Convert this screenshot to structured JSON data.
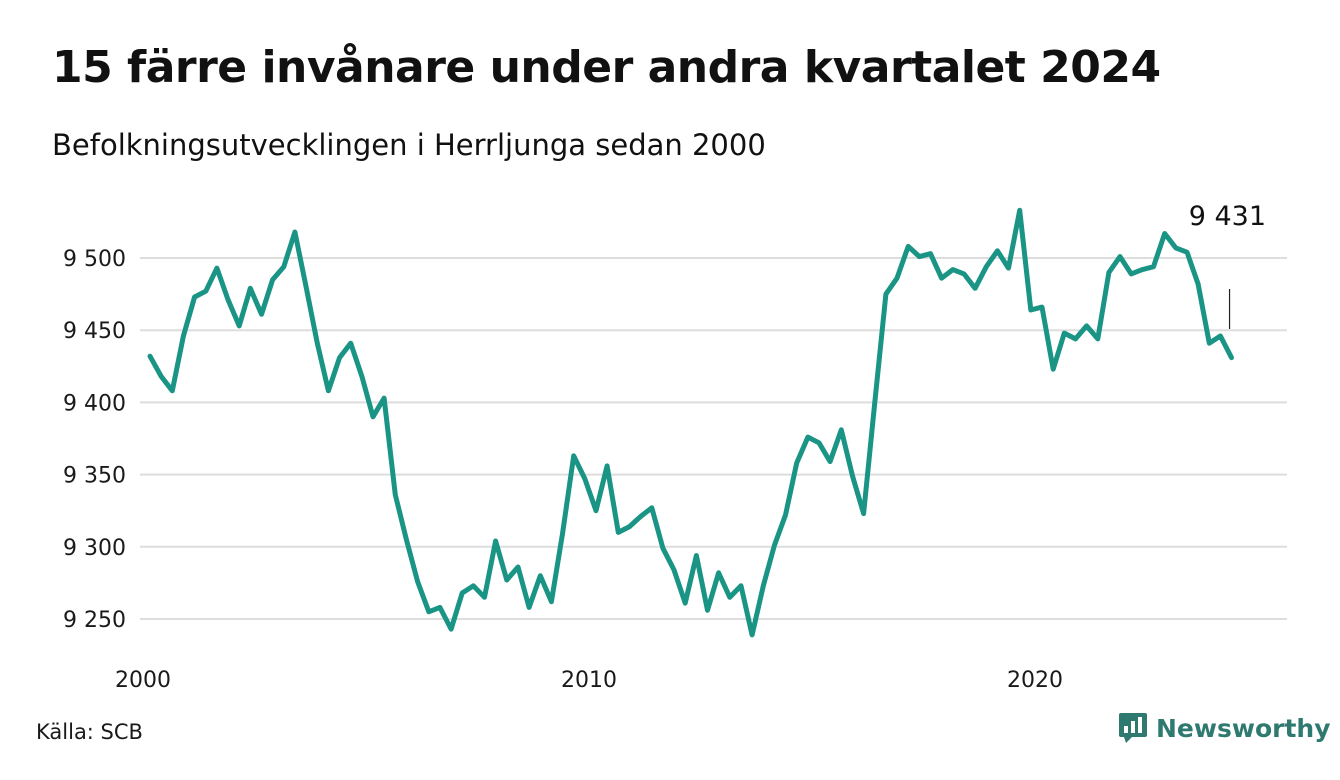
{
  "header": {
    "title": "15 färre invånare under andra kvartalet 2024",
    "subtitle": "Befolkningsutvecklingen i Herrljunga sedan 2000"
  },
  "footer": {
    "source": "Källa: SCB",
    "brand": "Newsworthy"
  },
  "colors": {
    "line": "#1a9484",
    "grid": "#dddddd",
    "brand": "#2e7a70"
  },
  "icons": [
    "newsworthy-logo-icon"
  ],
  "chart_data": {
    "type": "line",
    "title": "15 färre invånare under andra kvartalet 2024",
    "subtitle": "Befolkningsutvecklingen i Herrljunga sedan 2000",
    "xlabel": "",
    "ylabel": "",
    "x_unit": "quarter",
    "ylim": [
      9235,
      9540
    ],
    "xlim": [
      2000,
      2024.5
    ],
    "y_ticks": [
      {
        "value": 9250,
        "label": "9 250"
      },
      {
        "value": 9300,
        "label": "9 300"
      },
      {
        "value": 9350,
        "label": "9 350"
      },
      {
        "value": 9400,
        "label": "9 400"
      },
      {
        "value": 9450,
        "label": "9 450"
      },
      {
        "value": 9500,
        "label": "9 500"
      }
    ],
    "x_ticks": [
      {
        "value": 2000,
        "label": "2000"
      },
      {
        "value": 2010,
        "label": "2010"
      },
      {
        "value": 2020,
        "label": "2020"
      }
    ],
    "grid": "horizontal",
    "annotation": {
      "text": "9 431",
      "x": "2024 Q2",
      "value": 9431
    },
    "x": [
      "2000 Q1",
      "2000 Q2",
      "2000 Q3",
      "2000 Q4",
      "2001 Q1",
      "2001 Q2",
      "2001 Q3",
      "2001 Q4",
      "2002 Q1",
      "2002 Q2",
      "2002 Q3",
      "2002 Q4",
      "2003 Q1",
      "2003 Q2",
      "2003 Q3",
      "2003 Q4",
      "2004 Q1",
      "2004 Q2",
      "2004 Q3",
      "2004 Q4",
      "2005 Q1",
      "2005 Q2",
      "2005 Q3",
      "2005 Q4",
      "2006 Q1",
      "2006 Q2",
      "2006 Q3",
      "2006 Q4",
      "2007 Q1",
      "2007 Q2",
      "2007 Q3",
      "2007 Q4",
      "2008 Q1",
      "2008 Q2",
      "2008 Q3",
      "2008 Q4",
      "2009 Q1",
      "2009 Q2",
      "2009 Q3",
      "2009 Q4",
      "2010 Q1",
      "2010 Q2",
      "2010 Q3",
      "2010 Q4",
      "2011 Q1",
      "2011 Q2",
      "2011 Q3",
      "2011 Q4",
      "2012 Q1",
      "2012 Q2",
      "2012 Q3",
      "2012 Q4",
      "2013 Q1",
      "2013 Q2",
      "2013 Q3",
      "2013 Q4",
      "2014 Q1",
      "2014 Q2",
      "2014 Q3",
      "2014 Q4",
      "2015 Q1",
      "2015 Q2",
      "2015 Q3",
      "2015 Q4",
      "2016 Q1",
      "2016 Q2",
      "2016 Q3",
      "2016 Q4",
      "2017 Q1",
      "2017 Q2",
      "2017 Q3",
      "2017 Q4",
      "2018 Q1",
      "2018 Q2",
      "2018 Q3",
      "2018 Q4",
      "2019 Q1",
      "2019 Q2",
      "2019 Q3",
      "2019 Q4",
      "2020 Q1",
      "2020 Q2",
      "2020 Q3",
      "2020 Q4",
      "2021 Q1",
      "2021 Q2",
      "2021 Q3",
      "2021 Q4",
      "2022 Q1",
      "2022 Q2",
      "2022 Q3",
      "2022 Q4",
      "2023 Q1",
      "2023 Q2",
      "2023 Q3",
      "2023 Q4",
      "2024 Q1",
      "2024 Q2"
    ],
    "values": [
      9432,
      9418,
      9408,
      9446,
      9473,
      9477,
      9493,
      9471,
      9453,
      9479,
      9461,
      9485,
      9494,
      9518,
      9480,
      9441,
      9408,
      9431,
      9441,
      9418,
      9390,
      9403,
      9336,
      9305,
      9276,
      9255,
      9258,
      9243,
      9268,
      9273,
      9265,
      9304,
      9277,
      9286,
      9258,
      9280,
      9262,
      9309,
      9363,
      9347,
      9325,
      9356,
      9310,
      9314,
      9321,
      9327,
      9299,
      9284,
      9261,
      9294,
      9256,
      9282,
      9265,
      9273,
      9239,
      9273,
      9301,
      9322,
      9358,
      9376,
      9372,
      9359,
      9381,
      9349,
      9323,
      9400,
      9475,
      9486,
      9508,
      9501,
      9503,
      9486,
      9492,
      9489,
      9479,
      9494,
      9505,
      9493,
      9533,
      9464,
      9466,
      9423,
      9448,
      9444,
      9453,
      9444,
      9490,
      9501,
      9489,
      9492,
      9494,
      9517,
      9507,
      9504,
      9482,
      9441,
      9446,
      9431
    ]
  }
}
